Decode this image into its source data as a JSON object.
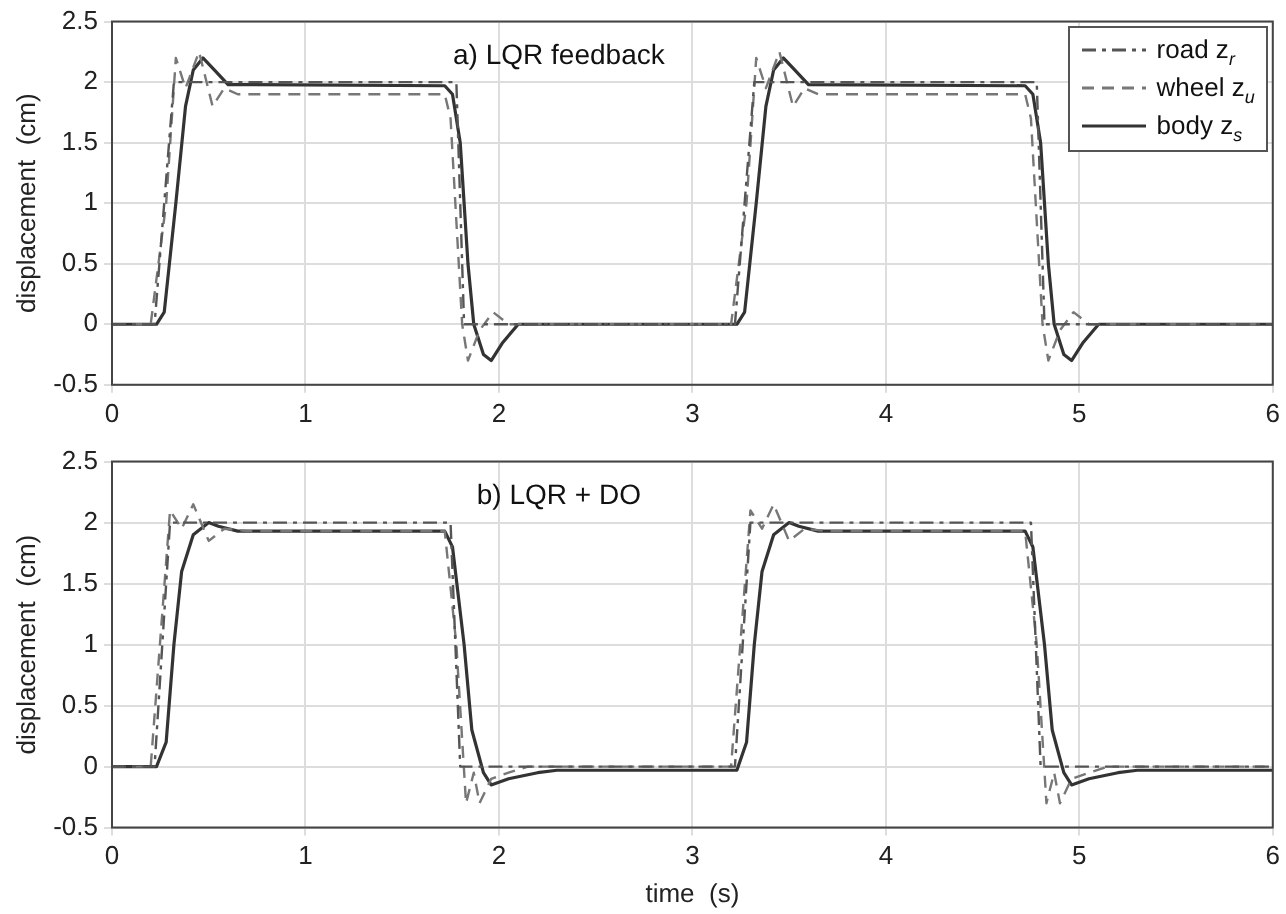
{
  "chart_data": [
    {
      "type": "line",
      "annotations": [
        "a) LQR feedback"
      ],
      "ylabel": "displacement  (cm)",
      "xlim": [
        0,
        6
      ],
      "xticks": [
        0,
        1,
        2,
        3,
        4,
        5,
        6
      ],
      "ylim": [
        -0.5,
        2.5
      ],
      "yticks": [
        -0.5,
        0,
        0.5,
        1,
        1.5,
        2,
        2.5
      ],
      "grid": true,
      "legend": "top right",
      "marker": "none",
      "series": [
        {
          "name": "road z$_{r}$",
          "color": "#555555",
          "line_style": "dashdot",
          "x": [
            0,
            0.22,
            0.32,
            1.78,
            1.82,
            3.22,
            3.32,
            4.78,
            4.82,
            6
          ],
          "values": [
            0,
            0,
            2,
            2,
            0,
            0,
            2,
            2,
            0,
            0
          ]
        },
        {
          "name": "wheel z$_{u}$",
          "color": "#777777",
          "line_style": "dashed",
          "x": [
            0,
            0.2,
            0.28,
            0.33,
            0.38,
            0.45,
            0.52,
            0.58,
            0.65,
            1.72,
            1.75,
            1.81,
            1.84,
            1.9,
            1.97,
            2.05,
            3.2,
            3.28,
            3.33,
            3.38,
            3.45,
            3.52,
            3.58,
            3.65,
            4.72,
            4.75,
            4.81,
            4.84,
            4.9,
            4.97,
            5.05,
            6
          ],
          "values": [
            0,
            0,
            1.0,
            2.2,
            1.95,
            2.25,
            1.8,
            1.95,
            1.9,
            1.9,
            1.7,
            0,
            -0.3,
            -0.05,
            0.1,
            0,
            0,
            1.0,
            2.2,
            1.95,
            2.25,
            1.8,
            1.95,
            1.9,
            1.9,
            1.7,
            0,
            -0.3,
            -0.05,
            0.1,
            0,
            0
          ]
        },
        {
          "name": "body z$_{s}$",
          "color": "#333333",
          "line_style": "solid",
          "x": [
            0,
            0.23,
            0.27,
            0.33,
            0.38,
            0.42,
            0.47,
            0.53,
            0.6,
            1.72,
            1.76,
            1.8,
            1.84,
            1.87,
            1.92,
            1.96,
            2.02,
            2.1,
            3.23,
            3.27,
            3.33,
            3.38,
            3.42,
            3.47,
            3.53,
            3.6,
            4.72,
            4.76,
            4.8,
            4.84,
            4.87,
            4.92,
            4.96,
            5.02,
            5.1,
            6
          ],
          "values": [
            0,
            0,
            0.1,
            1.0,
            1.8,
            2.1,
            2.2,
            2.1,
            1.98,
            1.97,
            1.9,
            1.5,
            0.5,
            0,
            -0.25,
            -0.3,
            -0.15,
            0,
            0,
            0.1,
            1.0,
            1.8,
            2.1,
            2.2,
            2.1,
            1.98,
            1.97,
            1.9,
            1.5,
            0.5,
            0,
            -0.25,
            -0.3,
            -0.15,
            0,
            0
          ]
        }
      ]
    },
    {
      "type": "line",
      "annotations": [
        "b) LQR + DO"
      ],
      "xlabel": "time  (s)",
      "ylabel": "displacement  (cm)",
      "xlim": [
        0,
        6
      ],
      "xticks": [
        0,
        1,
        2,
        3,
        4,
        5,
        6
      ],
      "ylim": [
        -0.5,
        2.5
      ],
      "yticks": [
        -0.5,
        0,
        0.5,
        1,
        1.5,
        2,
        2.5
      ],
      "grid": true,
      "marker": "none",
      "series": [
        {
          "color": "#555555",
          "line_style": "dashdot",
          "x": [
            0,
            0.22,
            0.3,
            1.75,
            1.8,
            3.22,
            3.3,
            4.75,
            4.8,
            6
          ],
          "values": [
            0,
            0,
            2,
            2,
            0,
            0,
            2,
            2,
            0,
            0
          ]
        },
        {
          "color": "#777777",
          "line_style": "dashed",
          "x": [
            0,
            0.2,
            0.3,
            0.36,
            0.42,
            0.5,
            0.58,
            0.7,
            1.72,
            1.78,
            1.83,
            1.87,
            1.9,
            1.96,
            2.05,
            2.15,
            3.2,
            3.3,
            3.36,
            3.42,
            3.5,
            3.58,
            3.7,
            4.72,
            4.78,
            4.83,
            4.87,
            4.9,
            4.96,
            5.05,
            5.15,
            6
          ],
          "values": [
            0,
            0,
            2.1,
            1.95,
            2.15,
            1.85,
            1.95,
            1.93,
            1.93,
            1.0,
            -0.3,
            -0.05,
            -0.3,
            -0.1,
            -0.05,
            0,
            0,
            2.1,
            1.95,
            2.15,
            1.85,
            1.95,
            1.93,
            1.93,
            1.0,
            -0.3,
            -0.05,
            -0.3,
            -0.1,
            -0.05,
            0,
            0
          ]
        },
        {
          "color": "#333333",
          "line_style": "solid",
          "x": [
            0,
            0.23,
            0.28,
            0.32,
            0.36,
            0.42,
            0.5,
            0.55,
            0.65,
            1.72,
            1.76,
            1.82,
            1.86,
            1.92,
            1.96,
            2.05,
            2.2,
            2.3,
            3.23,
            3.28,
            3.32,
            3.36,
            3.42,
            3.5,
            3.55,
            3.65,
            4.72,
            4.76,
            4.82,
            4.86,
            4.92,
            4.96,
            5.05,
            5.2,
            5.3,
            6
          ],
          "values": [
            0,
            0,
            0.2,
            1.0,
            1.6,
            1.9,
            2.0,
            1.97,
            1.93,
            1.93,
            1.8,
            1.0,
            0.3,
            -0.05,
            -0.15,
            -0.1,
            -0.05,
            -0.03,
            -0.03,
            0.2,
            1.0,
            1.6,
            1.9,
            2.0,
            1.97,
            1.93,
            1.93,
            1.8,
            1.0,
            0.3,
            -0.05,
            -0.15,
            -0.1,
            -0.05,
            -0.03,
            -0.03
          ]
        }
      ]
    }
  ]
}
